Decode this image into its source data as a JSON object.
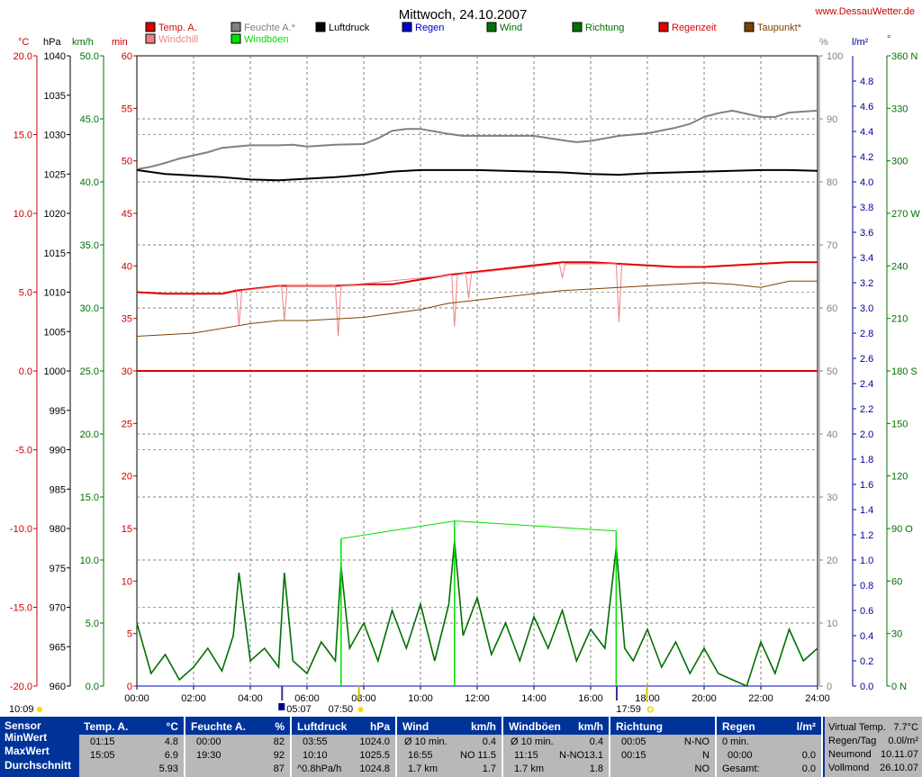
{
  "page": {
    "title": "Mittwoch, 24.10.2007",
    "website": "www.DessauWetter.de"
  },
  "legend": [
    {
      "label": "Temp. A.",
      "color": "#e00000"
    },
    {
      "label": "Windchill",
      "color": "#f08080"
    },
    {
      "label": "Feuchte A.*",
      "color": "#808080"
    },
    {
      "label": "Windböen",
      "color": "#00e000"
    },
    {
      "label": "Luftdruck",
      "color": "#000000"
    },
    {
      "label": "Regen",
      "color": "#0000cc"
    },
    {
      "label": "Wind",
      "color": "#007000"
    },
    {
      "label": "Richtung",
      "color": "#007000"
    },
    {
      "label": "Regenzeit",
      "color": "#e00000"
    },
    {
      "label": "Taupunkt*",
      "color": "#804000"
    }
  ],
  "axes_units": {
    "temp": "°C",
    "pressure": "hPa",
    "wind": "km/h",
    "minutes": "min",
    "humidity": "%",
    "rain": "l/m²",
    "direction": "°"
  },
  "axes": {
    "temp_ticks": [
      "20.0",
      "15.0",
      "10.0",
      "5.0",
      "0.0",
      "-5.0",
      "-10.0",
      "-15.0",
      "-20.0"
    ],
    "pressure_ticks": [
      "1040",
      "1035",
      "1030",
      "1025",
      "1020",
      "1015",
      "1010",
      "1005",
      "1000",
      "995",
      "990",
      "985",
      "980",
      "975",
      "970",
      "965",
      "960"
    ],
    "wind_ticks": [
      "50.0",
      "45.0",
      "40.0",
      "35.0",
      "30.0",
      "25.0",
      "20.0",
      "15.0",
      "10.0",
      "5.0",
      "0.0"
    ],
    "minutes_ticks": [
      "60",
      "55",
      "50",
      "45",
      "40",
      "35",
      "30",
      "25",
      "20",
      "15",
      "10",
      "5",
      "0"
    ],
    "humidity_ticks": [
      "100",
      "90",
      "80",
      "70",
      "60",
      "50",
      "40",
      "30",
      "20",
      "10",
      "0"
    ],
    "rain_ticks": [
      "4.8",
      "4.6",
      "4.4",
      "4.2",
      "4.0",
      "3.8",
      "3.6",
      "3.4",
      "3.2",
      "3.0",
      "2.8",
      "2.6",
      "2.4",
      "2.2",
      "2.0",
      "1.8",
      "1.6",
      "1.4",
      "1.2",
      "1.0",
      "0.8",
      "0.6",
      "0.4",
      "0.2",
      "0.0"
    ],
    "direction_ticks": [
      "360 N",
      "330",
      "300",
      "270 W",
      "240",
      "210",
      "180 S",
      "150",
      "120",
      "90 O",
      "60",
      "30",
      "0 N"
    ],
    "time_ticks": [
      "00:00",
      "02:00",
      "04:00",
      "06:00",
      "08:00",
      "10:00",
      "12:00",
      "14:00",
      "16:00",
      "18:00",
      "20:00",
      "22:00",
      "24:00"
    ]
  },
  "astro": {
    "sunshine_duration": "10:09",
    "moonrise": "05:07",
    "sunrise": "07:50",
    "sunset": "17:59"
  },
  "chart_data": {
    "type": "line",
    "title": "Mittwoch, 24.10.2007",
    "x_unit": "hours",
    "xlim": [
      0,
      24
    ],
    "series": [
      {
        "name": "Feuchte A.*",
        "unit": "%",
        "axis": "humidity",
        "color": "#808080",
        "x": [
          0,
          0.5,
          1,
          1.5,
          2,
          2.5,
          3,
          4,
          5,
          5.5,
          6,
          7,
          8,
          8.5,
          9,
          9.5,
          10,
          10.5,
          11,
          11.5,
          12,
          13,
          14,
          15,
          15.5,
          16,
          16.5,
          17,
          18,
          19,
          19.5,
          20,
          20.5,
          21,
          22,
          22.5,
          23,
          24
        ],
        "values": [
          82,
          82.4,
          83,
          83.7,
          84.2,
          84.7,
          85.4,
          85.8,
          85.8,
          85.9,
          85.6,
          85.9,
          86,
          86.9,
          88.1,
          88.4,
          88.4,
          88,
          87.6,
          87.3,
          87.3,
          87.3,
          87.3,
          86.6,
          86.3,
          86.5,
          86.9,
          87.3,
          87.7,
          88.6,
          89.2,
          90.3,
          90.9,
          91.3,
          90.3,
          90.3,
          91,
          91.3
        ]
      },
      {
        "name": "Luftdruck",
        "unit": "hPa",
        "axis": "pressure",
        "color": "#000000",
        "x": [
          0,
          1,
          2,
          3,
          4,
          5,
          6,
          7,
          8,
          9,
          10,
          11,
          12,
          13,
          14,
          15,
          16,
          17,
          18,
          19,
          20,
          21,
          22,
          23,
          24
        ],
        "values": [
          1025.5,
          1025.0,
          1024.8,
          1024.6,
          1024.3,
          1024.2,
          1024.4,
          1024.6,
          1024.9,
          1025.3,
          1025.5,
          1025.5,
          1025.5,
          1025.4,
          1025.3,
          1025.2,
          1025.0,
          1024.9,
          1025.1,
          1025.2,
          1025.3,
          1025.4,
          1025.5,
          1025.5,
          1025.4
        ]
      },
      {
        "name": "Temp. A.",
        "unit": "°C",
        "axis": "temp",
        "color": "#e00000",
        "x": [
          0,
          1,
          2,
          3,
          3.5,
          4,
          5,
          6,
          7,
          8,
          9,
          10,
          11,
          12,
          13,
          14,
          15,
          16,
          17,
          18,
          19,
          20,
          21,
          22,
          23,
          24
        ],
        "values": [
          5.0,
          4.9,
          4.9,
          4.9,
          5.1,
          5.2,
          5.4,
          5.4,
          5.4,
          5.5,
          5.5,
          5.8,
          6.1,
          6.3,
          6.5,
          6.7,
          6.9,
          6.9,
          6.8,
          6.7,
          6.6,
          6.6,
          6.7,
          6.8,
          6.9,
          6.9
        ]
      },
      {
        "name": "Windchill",
        "unit": "°C",
        "axis": "temp",
        "color": "#f08080",
        "x": [
          3.5,
          3.6,
          3.7,
          5.1,
          5.2,
          5.3,
          7.0,
          7.1,
          7.2,
          11.1,
          11.2,
          11.3,
          11.6,
          11.7,
          11.8,
          14.9,
          15.0,
          15.1,
          16.9,
          17.0,
          17.1
        ],
        "values": [
          5.1,
          2.9,
          5.1,
          5.4,
          3.2,
          5.4,
          5.4,
          2.2,
          5.4,
          6.1,
          2.8,
          6.1,
          6.2,
          4.6,
          6.2,
          6.8,
          5.9,
          6.8,
          6.8,
          3.1,
          6.8
        ]
      },
      {
        "name": "Taupunkt*",
        "unit": "°C",
        "axis": "temp",
        "color": "#804000",
        "x": [
          0,
          2,
          4,
          5,
          6,
          8,
          10,
          11,
          12,
          13,
          14,
          15,
          16,
          17,
          18,
          19,
          20,
          21,
          22,
          23,
          24
        ],
        "values": [
          2.2,
          2.4,
          3.0,
          3.2,
          3.2,
          3.4,
          3.9,
          4.3,
          4.5,
          4.7,
          4.9,
          5.1,
          5.2,
          5.3,
          5.4,
          5.5,
          5.6,
          5.5,
          5.3,
          5.7,
          5.7
        ]
      },
      {
        "name": "Regenzeit",
        "unit": "min",
        "axis": "minutes",
        "color": "#e00000",
        "x": [
          0,
          24
        ],
        "values": [
          30,
          30
        ]
      },
      {
        "name": "Regen",
        "unit": "l/m²",
        "axis": "rain",
        "color": "#0000cc",
        "x": [
          0,
          24
        ],
        "values": [
          0,
          0
        ]
      },
      {
        "name": "Wind",
        "unit": "km/h",
        "axis": "wind",
        "color": "#007000",
        "x": [
          0,
          0.5,
          1,
          1.5,
          2,
          2.5,
          3,
          3.4,
          3.6,
          4,
          4.5,
          5,
          5.2,
          5.5,
          6,
          6.5,
          7,
          7.2,
          7.5,
          8,
          8.5,
          9,
          9.5,
          10,
          10.5,
          11,
          11.2,
          11.5,
          12,
          12.5,
          13,
          13.5,
          14,
          14.5,
          15,
          15.5,
          16,
          16.5,
          16.9,
          17.2,
          17.5,
          18,
          18.5,
          19,
          19.5,
          20,
          20.5,
          21,
          21.5,
          22,
          22.5,
          23,
          23.5,
          24
        ],
        "values": [
          5.0,
          1.0,
          2.5,
          0.5,
          1.5,
          3.0,
          1.2,
          4.0,
          9.0,
          2.0,
          3.0,
          1.5,
          9.0,
          2.0,
          1.0,
          3.5,
          2.0,
          9.5,
          3.0,
          5.0,
          2.0,
          6.0,
          3.0,
          6.5,
          2.0,
          6.5,
          11.5,
          4.0,
          7.0,
          2.5,
          5.0,
          2.0,
          5.5,
          3.0,
          6.0,
          2.0,
          4.5,
          3.0,
          11.0,
          3.0,
          2.0,
          4.5,
          1.5,
          3.5,
          1.0,
          3.0,
          1.0,
          0.5,
          0.0,
          3.5,
          1.0,
          4.5,
          2.0,
          3.0
        ]
      },
      {
        "name": "Windböen",
        "unit": "km/h",
        "axis": "wind",
        "color": "#00e000",
        "x": [
          7.2,
          11.2,
          16.9
        ],
        "values": [
          11.7,
          13.1,
          12.3
        ]
      }
    ]
  },
  "table": {
    "sensor": {
      "header": "Sensor",
      "rows": [
        "MinWert",
        "MaxWert",
        "Durchschnitt"
      ]
    },
    "temp": {
      "header": "Temp. A.",
      "unit": "°C",
      "rows": [
        [
          "01:15",
          "4.8"
        ],
        [
          "15:05",
          "6.9"
        ],
        [
          "",
          "5.93"
        ]
      ]
    },
    "humidity": {
      "header": "Feuchte A.",
      "unit": "%",
      "rows": [
        [
          "00:00",
          "82"
        ],
        [
          "19:30",
          "92"
        ],
        [
          "",
          "87"
        ]
      ]
    },
    "pressure": {
      "header": "Luftdruck",
      "unit": "hPa",
      "rows": [
        [
          "03:55",
          "1024.0"
        ],
        [
          "10:10",
          "1025.5"
        ],
        [
          "^0.8hPa/h",
          "1024.8"
        ]
      ]
    },
    "wind": {
      "header": "Wind",
      "unit": "km/h",
      "rows": [
        [
          "Ø 10 min.",
          "",
          "0.4"
        ],
        [
          "16:55",
          "NO",
          "11.5"
        ],
        [
          "1.7 km",
          "",
          "1.7"
        ]
      ]
    },
    "gusts": {
      "header": "Windböen",
      "unit": "km/h",
      "rows": [
        [
          "Ø 10 min.",
          "",
          "0.4"
        ],
        [
          "11:15",
          "N-NO",
          "13.1"
        ],
        [
          "1.7 km",
          "",
          "1.8"
        ]
      ]
    },
    "direction": {
      "header": "Richtung",
      "rows": [
        [
          "00:05",
          "N-NO"
        ],
        [
          "00:15",
          "N"
        ],
        [
          "",
          "NO"
        ]
      ]
    },
    "rain": {
      "header": "Regen",
      "unit": "l/m²",
      "rows": [
        [
          "0 min.",
          ""
        ],
        [
          "00:00",
          "0.0"
        ],
        [
          "Gesamt:",
          "0.0"
        ]
      ]
    },
    "extra": [
      {
        "label": "Virtual Temp.",
        "value": "7.7°C"
      },
      {
        "label": "Regen/Tag",
        "value": "0.0l/m²"
      },
      {
        "label": "Neumond",
        "value": "10.11.07"
      },
      {
        "label": "Vollmond",
        "value": "26.10.07"
      }
    ]
  }
}
